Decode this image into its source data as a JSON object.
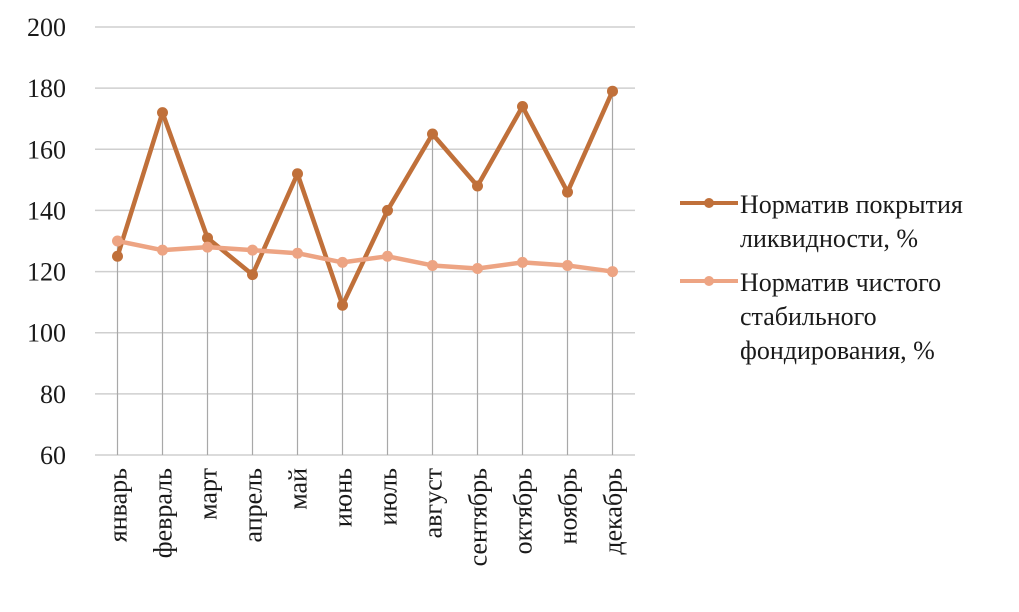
{
  "chart_data": {
    "type": "line",
    "categories": [
      "январь",
      "февраль",
      "март",
      "апрель",
      "май",
      "июнь",
      "июль",
      "август",
      "сентябрь",
      "октябрь",
      "ноябрь",
      "декабрь"
    ],
    "series": [
      {
        "name": "Норматив покрытия ликвидности, %",
        "color": "#c0703a",
        "values": [
          125,
          172,
          131,
          119,
          152,
          109,
          140,
          165,
          148,
          174,
          146,
          179
        ]
      },
      {
        "name": "Норматив чистого стабильного фондирования, %",
        "color": "#eda483",
        "values": [
          130,
          127,
          128,
          127,
          126,
          123,
          125,
          122,
          121,
          123,
          122,
          120
        ]
      }
    ],
    "ylim": [
      60,
      200
    ],
    "yticks": [
      60,
      80,
      100,
      120,
      140,
      160,
      180,
      200
    ],
    "title": "",
    "xlabel": "",
    "ylabel": "",
    "grid": "horizontal and vertical",
    "legend": "right"
  }
}
